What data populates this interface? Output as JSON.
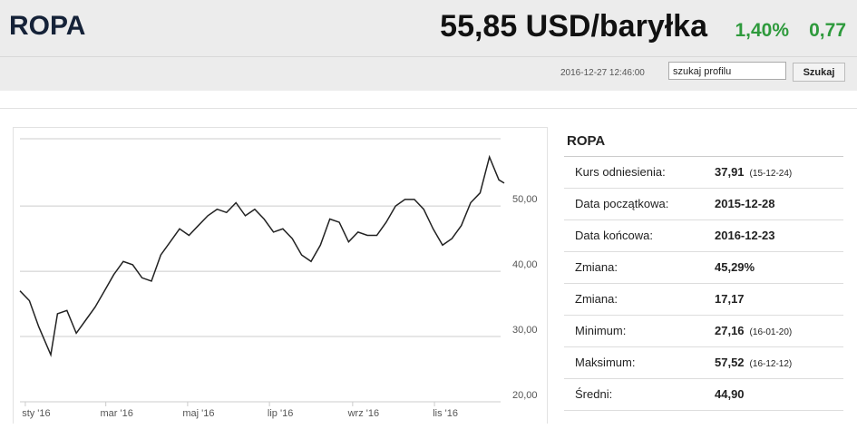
{
  "header": {
    "title": "ROPA",
    "price": "55,85 USD/baryłka",
    "change_pct": "1,40%",
    "change_abs": "0,77",
    "datetime": "2016-12-27 12:46:00",
    "search_placeholder": "szukaj profilu",
    "search_button": "Szukaj"
  },
  "info": {
    "title": "ROPA",
    "rows": [
      {
        "label": "Kurs odniesienia:",
        "value": "37,91",
        "note": "(15-12-24)"
      },
      {
        "label": "Data początkowa:",
        "value": "2015-12-28"
      },
      {
        "label": "Data końcowa:",
        "value": "2016-12-23"
      },
      {
        "label": "Zmiana:",
        "value": "45,29%"
      },
      {
        "label": "Zmiana:",
        "value": "17,17"
      },
      {
        "label": "Minimum:",
        "value": "27,16",
        "note": "(16-01-20)"
      },
      {
        "label": "Maksimum:",
        "value": "57,52",
        "note": "(16-12-12)"
      },
      {
        "label": "Średni:",
        "value": "44,90"
      }
    ]
  },
  "chart_data": {
    "type": "line",
    "color": "#222222",
    "x": [
      "2015-12-28",
      "2016-01-04",
      "2016-01-11",
      "2016-01-20",
      "2016-01-25",
      "2016-02-01",
      "2016-02-08",
      "2016-02-15",
      "2016-02-22",
      "2016-02-29",
      "2016-03-07",
      "2016-03-14",
      "2016-03-21",
      "2016-03-28",
      "2016-04-04",
      "2016-04-11",
      "2016-04-18",
      "2016-04-25",
      "2016-05-02",
      "2016-05-09",
      "2016-05-16",
      "2016-05-23",
      "2016-05-30",
      "2016-06-06",
      "2016-06-13",
      "2016-06-20",
      "2016-06-27",
      "2016-07-04",
      "2016-07-11",
      "2016-07-18",
      "2016-07-25",
      "2016-08-01",
      "2016-08-08",
      "2016-08-15",
      "2016-08-22",
      "2016-08-29",
      "2016-09-05",
      "2016-09-12",
      "2016-09-19",
      "2016-09-26",
      "2016-10-03",
      "2016-10-10",
      "2016-10-17",
      "2016-10-24",
      "2016-10-31",
      "2016-11-07",
      "2016-11-14",
      "2016-11-21",
      "2016-11-28",
      "2016-12-05",
      "2016-12-12",
      "2016-12-19",
      "2016-12-23"
    ],
    "values": [
      37.0,
      35.5,
      31.5,
      27.2,
      33.5,
      34.0,
      30.5,
      32.5,
      34.5,
      37.0,
      39.5,
      41.5,
      41.0,
      39.0,
      38.5,
      42.5,
      44.5,
      46.5,
      45.5,
      47.0,
      48.5,
      49.5,
      49.0,
      50.5,
      48.5,
      49.5,
      48.0,
      46.0,
      46.5,
      45.0,
      42.5,
      41.5,
      44.0,
      48.0,
      47.5,
      44.5,
      46.0,
      45.5,
      45.5,
      47.5,
      50.0,
      51.0,
      51.0,
      49.5,
      46.5,
      44.0,
      45.0,
      47.0,
      50.5,
      52.0,
      57.5,
      54.0,
      53.5
    ],
    "xlim": [
      "2015-12-28",
      "2016-12-23"
    ],
    "xticks": [
      {
        "value": "2016-01-01",
        "label": "sty '16"
      },
      {
        "value": "2016-03-01",
        "label": "mar '16"
      },
      {
        "value": "2016-05-01",
        "label": "maj '16"
      },
      {
        "value": "2016-07-01",
        "label": "lip '16"
      },
      {
        "value": "2016-09-01",
        "label": "wrz '16"
      },
      {
        "value": "2016-11-01",
        "label": "lis '16"
      }
    ],
    "ylim": [
      20,
      60.3
    ],
    "yticks": [
      {
        "value": 20,
        "label": "20,00"
      },
      {
        "value": 30,
        "label": "30,00"
      },
      {
        "value": 40,
        "label": "40,00"
      },
      {
        "value": 50,
        "label": "50,00"
      }
    ],
    "grid": true
  }
}
